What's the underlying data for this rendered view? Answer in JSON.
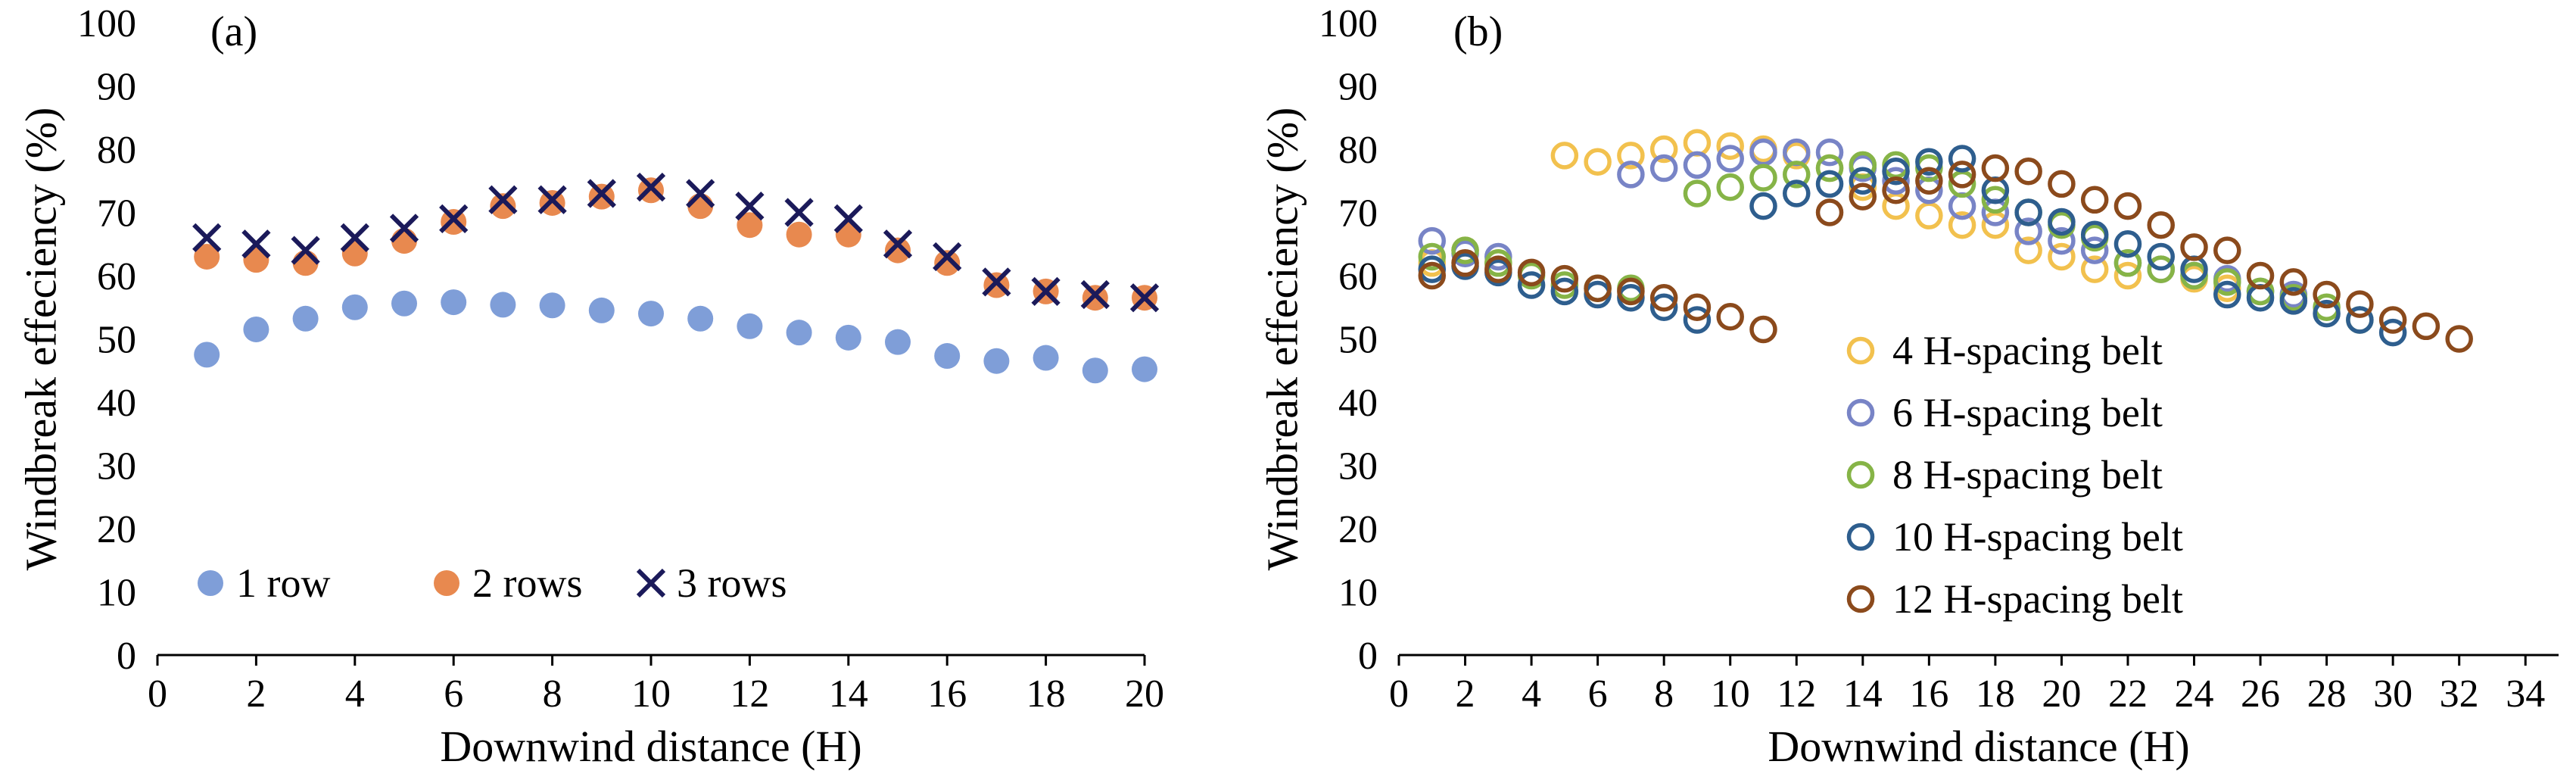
{
  "colors": {
    "row1": "#7F9ED8",
    "rows2": "#E8894F",
    "rows3": "#1B1A5A",
    "h4": "#F2C14E",
    "h6": "#7884C6",
    "h8": "#86B447",
    "h10": "#2E5E8E",
    "h12": "#8B4A1C"
  },
  "chart_data": [
    {
      "type": "scatter",
      "panel_label": "(a)",
      "xlabel": "Downwind distance (H)",
      "ylabel": "Windbreak effeciency (%)",
      "xlim": [
        0,
        20
      ],
      "ylim": [
        0,
        100
      ],
      "x_ticks": [
        "0",
        "2",
        "4",
        "6",
        "8",
        "10",
        "12",
        "14",
        "16",
        "18",
        "20"
      ],
      "y_ticks": [
        "0",
        "10",
        "20",
        "30",
        "40",
        "50",
        "60",
        "70",
        "80",
        "90",
        "100"
      ],
      "legend_position": "bottom-left, horizontal",
      "series": [
        {
          "name": "1 row",
          "marker": "filled-circle",
          "color": "#7F9ED8",
          "x": [
            1,
            2,
            3,
            4,
            5,
            6,
            7,
            8,
            9,
            10,
            11,
            12,
            13,
            14,
            15,
            16,
            17,
            18,
            19,
            20
          ],
          "y": [
            47.5,
            51.5,
            53.2,
            55,
            55.6,
            55.8,
            55.4,
            55.3,
            54.5,
            54,
            53.2,
            52,
            51,
            50.2,
            49.5,
            47.3,
            46.5,
            47,
            45,
            45.2
          ]
        },
        {
          "name": "2 rows",
          "marker": "filled-circle",
          "color": "#E8894F",
          "x": [
            1,
            2,
            3,
            4,
            5,
            6,
            7,
            8,
            9,
            10,
            11,
            12,
            13,
            14,
            15,
            16,
            17,
            18,
            19,
            20
          ],
          "y": [
            63,
            62.5,
            62,
            63.5,
            65.5,
            68.5,
            71,
            71.5,
            72.5,
            73.5,
            71,
            68,
            66.5,
            66.5,
            64,
            62,
            58.5,
            57.5,
            56.5,
            56.5
          ]
        },
        {
          "name": "3 rows",
          "marker": "cross",
          "color": "#1B1A5A",
          "x": [
            1,
            2,
            3,
            4,
            5,
            6,
            7,
            8,
            9,
            10,
            11,
            12,
            13,
            14,
            15,
            16,
            17,
            18,
            19,
            20
          ],
          "y": [
            66,
            65,
            64,
            66,
            67.5,
            69,
            72,
            72,
            73,
            74,
            73,
            71,
            70,
            69,
            65,
            63,
            59,
            57.5,
            57,
            56.5
          ]
        }
      ]
    },
    {
      "type": "scatter",
      "panel_label": "(b)",
      "xlabel": "Downwind distance (H)",
      "ylabel": "Windbreak effeciency (%)",
      "xlim": [
        0,
        35
      ],
      "ylim": [
        0,
        100
      ],
      "x_ticks": [
        "0",
        "2",
        "4",
        "6",
        "8",
        "10",
        "12",
        "14",
        "16",
        "18",
        "20",
        "22",
        "24",
        "26",
        "28",
        "30",
        "32",
        "34"
      ],
      "y_ticks": [
        "0",
        "10",
        "20",
        "30",
        "40",
        "50",
        "60",
        "70",
        "80",
        "90",
        "100"
      ],
      "legend_position": "lower-center, vertical",
      "series": [
        {
          "name": "4 H-spacing belt",
          "marker": "open-circle",
          "color": "#F2C14E",
          "x": [
            1,
            2,
            3,
            5,
            6,
            7,
            8,
            9,
            10,
            11,
            12,
            13,
            14,
            15,
            16,
            17,
            18,
            19,
            20,
            21,
            22,
            23,
            24,
            25
          ],
          "y": [
            62,
            64,
            62,
            79,
            78,
            79,
            80,
            81,
            80.5,
            80,
            79,
            77,
            74,
            71,
            69.5,
            68,
            68,
            64,
            63,
            61,
            60,
            61,
            59.5,
            58
          ]
        },
        {
          "name": "6 H-spacing belt",
          "marker": "open-circle",
          "color": "#7884C6",
          "x": [
            1,
            2,
            3,
            7,
            8,
            9,
            10,
            11,
            12,
            13,
            14,
            15,
            16,
            17,
            18,
            19,
            20,
            21,
            22,
            23,
            24,
            25,
            26,
            27
          ],
          "y": [
            65.5,
            63.5,
            63,
            76,
            77,
            77.5,
            78.5,
            79.5,
            79.5,
            79.5,
            77,
            75,
            73.5,
            71,
            70,
            67,
            65.5,
            64,
            62,
            61,
            60,
            59.5,
            57.5,
            57
          ]
        },
        {
          "name": "8 H-spacing belt",
          "marker": "open-circle",
          "color": "#86B447",
          "x": [
            1,
            2,
            3,
            4,
            5,
            6,
            7,
            9,
            10,
            11,
            12,
            13,
            14,
            15,
            16,
            17,
            18,
            19,
            20,
            21,
            22,
            23,
            24,
            25,
            26,
            27,
            28,
            29
          ],
          "y": [
            63,
            64,
            62,
            60,
            58.5,
            58,
            58,
            73,
            74,
            75.5,
            76,
            77,
            77.5,
            77.5,
            77,
            74.5,
            72,
            70,
            68,
            66,
            62,
            61,
            60,
            59,
            57.5,
            56.5,
            55,
            53
          ]
        },
        {
          "name": "10 H-spacing belt",
          "marker": "open-circle",
          "color": "#2E5E8E",
          "x": [
            1,
            2,
            3,
            4,
            5,
            6,
            7,
            8,
            9,
            11,
            12,
            13,
            14,
            15,
            16,
            17,
            18,
            19,
            20,
            21,
            22,
            23,
            24,
            25,
            26,
            27,
            28,
            29,
            30
          ],
          "y": [
            61,
            61.5,
            60.5,
            58.5,
            57.5,
            57,
            56.5,
            55,
            53,
            71,
            73,
            74.5,
            75,
            76.5,
            78,
            78.5,
            73.5,
            70,
            68.5,
            66.5,
            65,
            63,
            61,
            57,
            56.5,
            56,
            54,
            53,
            51
          ]
        },
        {
          "name": "12 H-spacing belt",
          "marker": "open-circle",
          "color": "#8B4A1C",
          "x": [
            1,
            2,
            3,
            4,
            5,
            6,
            7,
            8,
            9,
            10,
            11,
            13,
            14,
            15,
            16,
            17,
            18,
            19,
            20,
            21,
            22,
            23,
            24,
            25,
            26,
            27,
            28,
            29,
            30,
            31,
            32
          ],
          "y": [
            60,
            62,
            61,
            60.5,
            59.5,
            58,
            57.5,
            56.5,
            55,
            53.5,
            51.5,
            70,
            72.5,
            73.5,
            75,
            76,
            77,
            76.5,
            74.5,
            72,
            71,
            68,
            64.5,
            64,
            60,
            59,
            57,
            55.5,
            53,
            52,
            50
          ]
        }
      ]
    }
  ]
}
